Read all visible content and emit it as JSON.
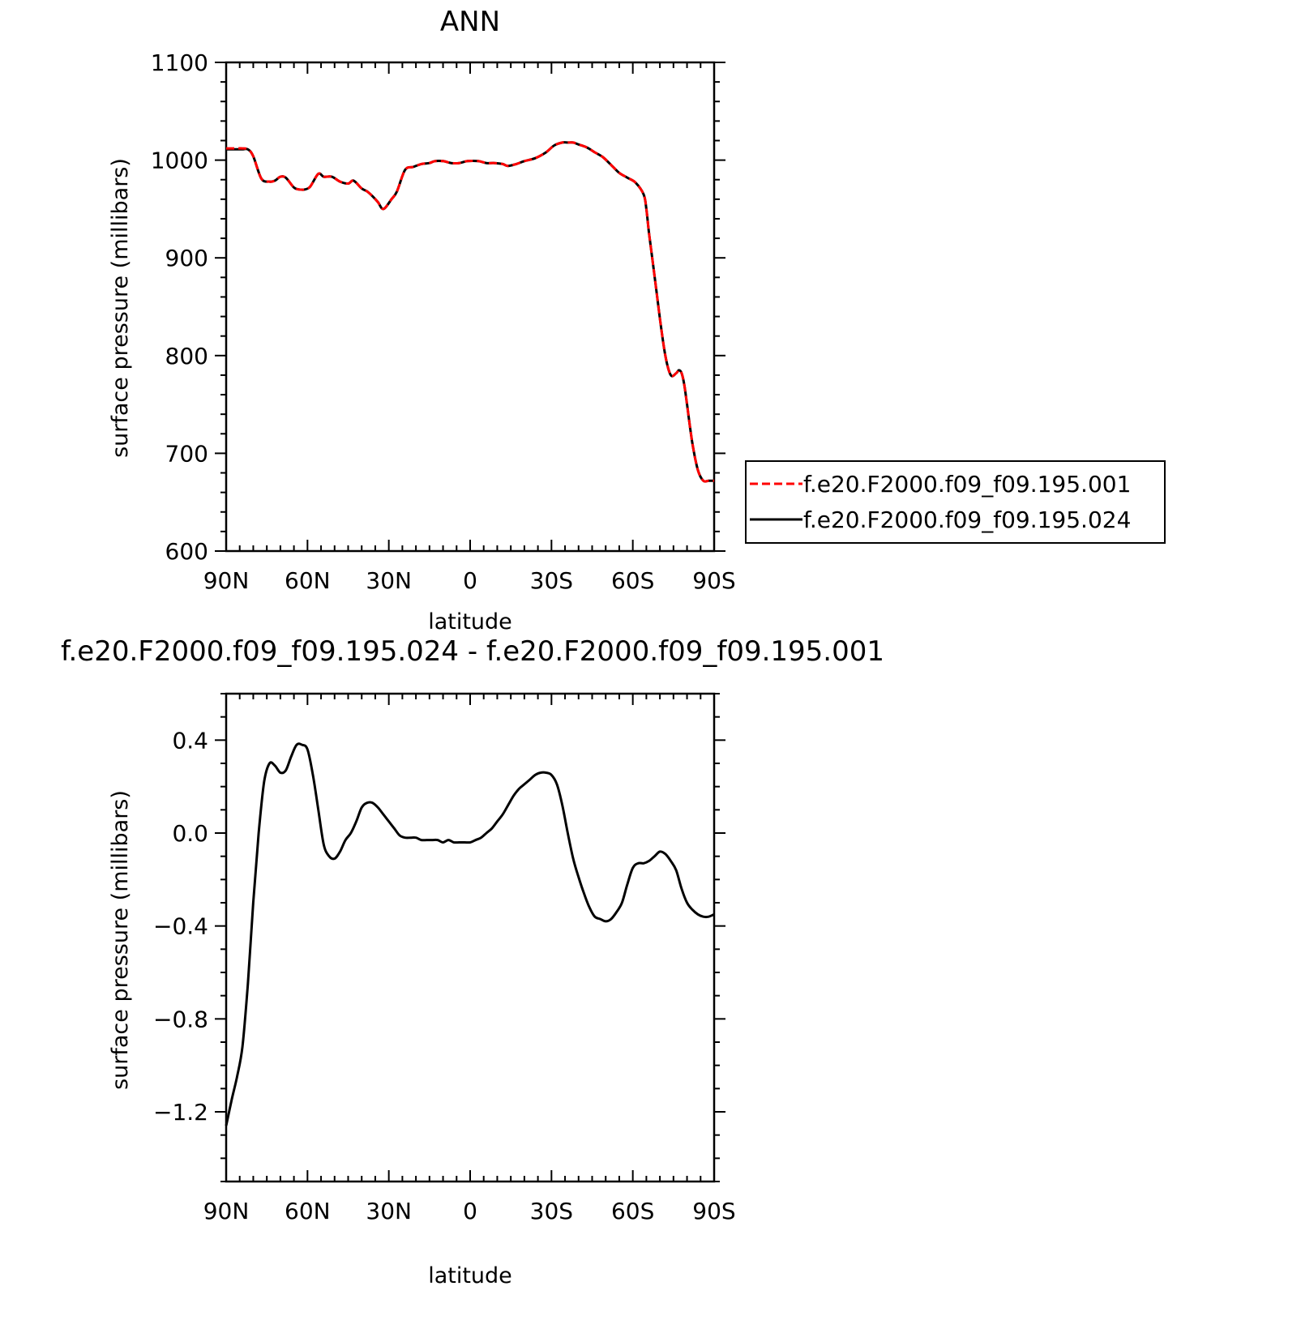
{
  "chart_data": [
    {
      "type": "line",
      "title": "ANN",
      "xlabel": "latitude",
      "ylabel": "surface pressure (millibars)",
      "x_ticks": [
        "90N",
        "60N",
        "30N",
        "0",
        "30S",
        "60S",
        "90S"
      ],
      "y_ticks": [
        "600",
        "700",
        "800",
        "900",
        "1000",
        "1100"
      ],
      "xlim": [
        90,
        -90
      ],
      "ylim": [
        600,
        1100
      ],
      "legend_position": "right",
      "series": [
        {
          "name": "f.e20.F2000.f09_f09.195.001",
          "color": "#ff0000",
          "dash": "dashed",
          "x": [
            90,
            86,
            84,
            82,
            80,
            77,
            74,
            72,
            70,
            68,
            65,
            63,
            61,
            59,
            56,
            54,
            51,
            48,
            45,
            43,
            40,
            38,
            36,
            34,
            32,
            29,
            27,
            24,
            21,
            18,
            15,
            13,
            10,
            7,
            4,
            1,
            -3,
            -6,
            -9,
            -12,
            -14,
            -17,
            -20,
            -24,
            -28,
            -31,
            -34,
            -36,
            -38,
            -40,
            -43,
            -46,
            -49,
            -52,
            -55,
            -58,
            -61,
            -64,
            -65,
            -66,
            -68,
            -70,
            -72,
            -74,
            -76,
            -77,
            -78,
            -79,
            -80,
            -82,
            -84,
            -86,
            -88,
            -90
          ],
          "values": [
            1012,
            1012,
            1012,
            1011,
            1004,
            981,
            978,
            979,
            983,
            982,
            972,
            970,
            970,
            973,
            986,
            983,
            983,
            978,
            976,
            979,
            971,
            968,
            963,
            957,
            950,
            960,
            968,
            990,
            993,
            996,
            997,
            999,
            999,
            997,
            997,
            999,
            999,
            997,
            997,
            996,
            994,
            996,
            999,
            1002,
            1008,
            1015,
            1018,
            1018,
            1018,
            1016,
            1013,
            1008,
            1003,
            995,
            987,
            982,
            977,
            965,
            950,
            925,
            882,
            838,
            800,
            780,
            782,
            785,
            782,
            770,
            750,
            710,
            683,
            672,
            672,
            672
          ]
        },
        {
          "name": "f.e20.F2000.f09_f09.195.024",
          "color": "#000000",
          "dash": "solid",
          "x": [
            90,
            86,
            84,
            82,
            80,
            77,
            74,
            72,
            70,
            68,
            65,
            63,
            61,
            59,
            56,
            54,
            51,
            48,
            45,
            43,
            40,
            38,
            36,
            34,
            32,
            29,
            27,
            24,
            21,
            18,
            15,
            13,
            10,
            7,
            4,
            1,
            -3,
            -6,
            -9,
            -12,
            -14,
            -17,
            -20,
            -24,
            -28,
            -31,
            -34,
            -36,
            -38,
            -40,
            -43,
            -46,
            -49,
            -52,
            -55,
            -58,
            -61,
            -64,
            -65,
            -66,
            -68,
            -70,
            -72,
            -74,
            -76,
            -77,
            -78,
            -79,
            -80,
            -82,
            -84,
            -86,
            -88,
            -90
          ],
          "values": [
            1011,
            1011,
            1011,
            1011,
            1004,
            981,
            978,
            979,
            983,
            982,
            972,
            970,
            970,
            973,
            986,
            983,
            983,
            978,
            976,
            979,
            971,
            968,
            963,
            957,
            950,
            960,
            968,
            990,
            993,
            996,
            997,
            999,
            999,
            997,
            997,
            999,
            999,
            997,
            997,
            996,
            994,
            996,
            999,
            1002,
            1008,
            1015,
            1018,
            1018,
            1018,
            1016,
            1013,
            1008,
            1003,
            995,
            987,
            982,
            977,
            965,
            950,
            925,
            882,
            838,
            800,
            780,
            782,
            785,
            782,
            770,
            750,
            710,
            683,
            672,
            672,
            672
          ]
        }
      ]
    },
    {
      "type": "line",
      "title": "f.e20.F2000.f09_f09.195.024 - f.e20.F2000.f09_f09.195.001",
      "xlabel": "latitude",
      "ylabel": "surface pressure (millibars)",
      "x_ticks": [
        "90N",
        "60N",
        "30N",
        "0",
        "30S",
        "60S",
        "90S"
      ],
      "y_ticks": [
        "-1.2",
        "-0.8",
        "-0.4",
        "0.0",
        "0.4"
      ],
      "xlim": [
        90,
        -90
      ],
      "ylim": [
        -1.5,
        0.6
      ],
      "series": [
        {
          "color": "#000000",
          "dash": "solid",
          "x": [
            90,
            88,
            86,
            84,
            82,
            80,
            78,
            76,
            74,
            72,
            70,
            68,
            66,
            64,
            62,
            60,
            58,
            56,
            54,
            52,
            50,
            48,
            46,
            44,
            42,
            40,
            38,
            36,
            34,
            32,
            30,
            28,
            26,
            24,
            22,
            20,
            18,
            16,
            14,
            12,
            10,
            8,
            6,
            4,
            2,
            0,
            -2,
            -4,
            -6,
            -8,
            -10,
            -12,
            -14,
            -16,
            -18,
            -20,
            -22,
            -24,
            -26,
            -28,
            -30,
            -32,
            -34,
            -36,
            -38,
            -40,
            -42,
            -44,
            -46,
            -48,
            -50,
            -52,
            -54,
            -56,
            -58,
            -60,
            -62,
            -64,
            -66,
            -68,
            -70,
            -72,
            -74,
            -76,
            -78,
            -80,
            -82,
            -84,
            -86,
            -88,
            -90
          ],
          "values": [
            -1.26,
            -1.15,
            -1.05,
            -0.92,
            -0.65,
            -0.3,
            0.0,
            0.22,
            0.3,
            0.29,
            0.26,
            0.27,
            0.33,
            0.38,
            0.38,
            0.36,
            0.25,
            0.1,
            -0.05,
            -0.1,
            -0.11,
            -0.08,
            -0.03,
            0.0,
            0.05,
            0.11,
            0.13,
            0.13,
            0.11,
            0.08,
            0.05,
            0.02,
            -0.01,
            -0.02,
            -0.02,
            -0.02,
            -0.03,
            -0.03,
            -0.03,
            -0.03,
            -0.04,
            -0.03,
            -0.04,
            -0.04,
            -0.04,
            -0.04,
            -0.03,
            -0.02,
            0.0,
            0.02,
            0.05,
            0.08,
            0.12,
            0.16,
            0.19,
            0.21,
            0.23,
            0.25,
            0.26,
            0.26,
            0.25,
            0.21,
            0.12,
            0.0,
            -0.11,
            -0.19,
            -0.26,
            -0.32,
            -0.36,
            -0.37,
            -0.38,
            -0.37,
            -0.34,
            -0.3,
            -0.22,
            -0.15,
            -0.13,
            -0.13,
            -0.12,
            -0.1,
            -0.08,
            -0.09,
            -0.12,
            -0.16,
            -0.24,
            -0.3,
            -0.33,
            -0.35,
            -0.36,
            -0.36,
            -0.35
          ]
        }
      ]
    }
  ]
}
